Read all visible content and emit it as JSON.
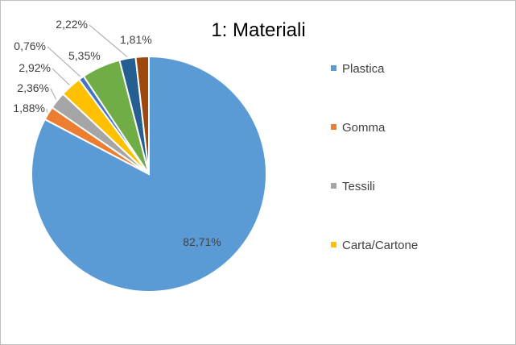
{
  "chart_data": {
    "type": "pie",
    "title": "1: Materiali",
    "start_angle_deg": 0,
    "direction": "clockwise",
    "slices": [
      {
        "name": "Plastica",
        "value": 82.71,
        "label": "82,71%",
        "color": "#5b9bd5"
      },
      {
        "name": "Gomma",
        "value": 1.88,
        "label": "1,88%",
        "color": "#ed7d31"
      },
      {
        "name": "Tessili",
        "value": 2.36,
        "label": "2,36%",
        "color": "#a5a5a5"
      },
      {
        "name": "Carta/Cartone",
        "value": 2.92,
        "label": "2,92%",
        "color": "#ffc000"
      },
      {
        "name": "",
        "value": 0.76,
        "label": "0,76%",
        "color": "#4472c4"
      },
      {
        "name": "",
        "value": 5.35,
        "label": "5,35%",
        "color": "#70ad47"
      },
      {
        "name": "",
        "value": 2.22,
        "label": "2,22%",
        "color": "#255e91"
      },
      {
        "name": "",
        "value": 1.81,
        "label": "1,81%",
        "color": "#9e480e"
      }
    ],
    "legend": {
      "placement": "right",
      "entries": [
        "Plastica",
        "Gomma",
        "Tessili",
        "Carta/Cartone"
      ]
    }
  }
}
